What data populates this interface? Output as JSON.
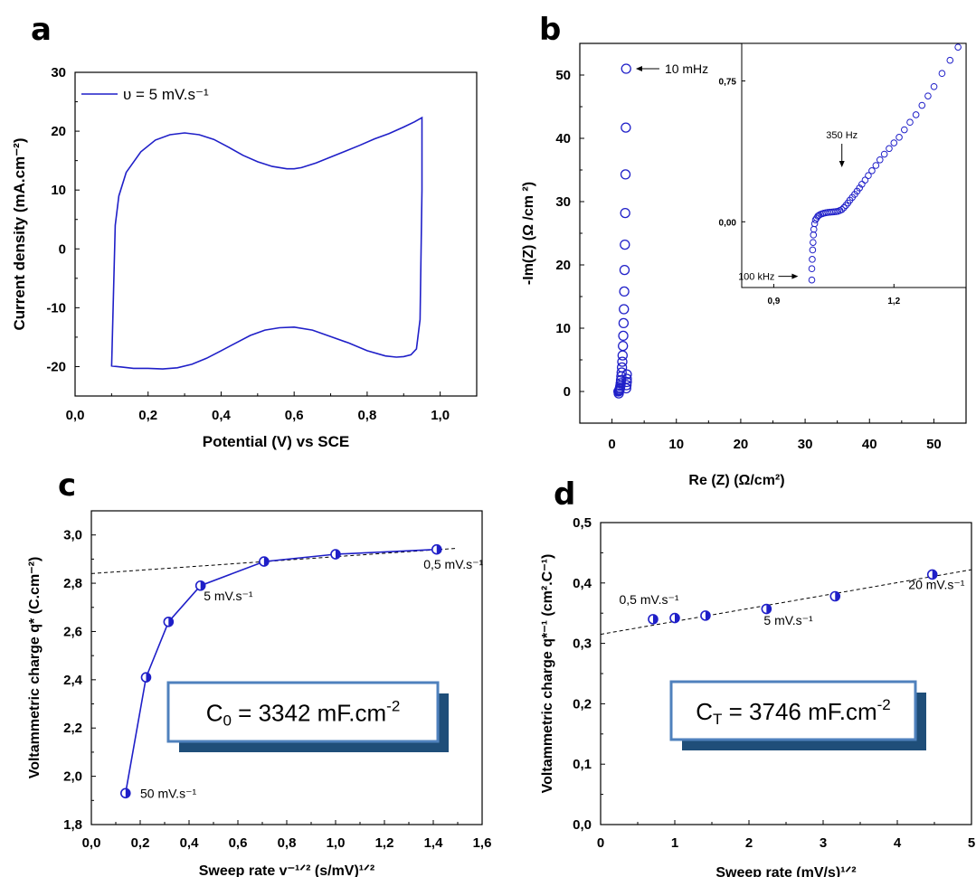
{
  "panels": {
    "a": {
      "letter": "a"
    },
    "b": {
      "letter": "b"
    },
    "c": {
      "letter": "c"
    },
    "d": {
      "letter": "d"
    }
  },
  "chart_data": [
    {
      "id": "a",
      "type": "line",
      "xlabel": "Potential (V) vs SCE",
      "ylabel": "Current density (mA.cm⁻²)",
      "xlim": [
        0.0,
        1.1
      ],
      "ylim": [
        -25,
        30
      ],
      "xticks": [
        "0,0",
        "0,2",
        "0,4",
        "0,6",
        "0,8",
        "1,0"
      ],
      "yticks": [
        "-20",
        "-10",
        "0",
        "10",
        "20",
        "30"
      ],
      "legend": {
        "label": "υ = 5 mV.s⁻¹",
        "position": "top-left"
      },
      "color": "#1f1fc8",
      "series": [
        {
          "name": "υ = 5 mV.s⁻¹",
          "x": [
            0.1,
            0.11,
            0.12,
            0.14,
            0.18,
            0.22,
            0.26,
            0.3,
            0.34,
            0.38,
            0.42,
            0.46,
            0.5,
            0.54,
            0.58,
            0.6,
            0.62,
            0.66,
            0.7,
            0.74,
            0.78,
            0.82,
            0.86,
            0.9,
            0.93,
            0.95,
            0.95,
            0.945,
            0.935,
            0.92,
            0.9,
            0.88,
            0.85,
            0.8,
            0.75,
            0.7,
            0.65,
            0.6,
            0.56,
            0.52,
            0.48,
            0.44,
            0.4,
            0.36,
            0.32,
            0.28,
            0.24,
            0.2,
            0.16,
            0.13,
            0.1,
            0.1
          ],
          "y": [
            -20,
            4.0,
            9.0,
            13.0,
            16.5,
            18.5,
            19.4,
            19.7,
            19.4,
            18.6,
            17.3,
            15.9,
            14.8,
            14.0,
            13.6,
            13.6,
            13.8,
            14.6,
            15.6,
            16.6,
            17.6,
            18.7,
            19.6,
            20.7,
            21.6,
            22.3,
            10.0,
            -12.0,
            -17.0,
            -18.0,
            -18.3,
            -18.4,
            -18.2,
            -17.3,
            -16.0,
            -14.9,
            -13.8,
            -13.3,
            -13.4,
            -13.8,
            -14.7,
            -16.0,
            -17.3,
            -18.6,
            -19.6,
            -20.2,
            -20.4,
            -20.3,
            -20.3,
            -20.1,
            -19.9,
            -20.0
          ]
        }
      ]
    },
    {
      "id": "b",
      "type": "scatter",
      "xlabel": "Re (Z) (Ω/cm²)",
      "ylabel": "-Im(Z) (Ω /cm ²)",
      "xlim": [
        -5,
        55
      ],
      "ylim": [
        -5,
        55
      ],
      "xticks": [
        "0",
        "10",
        "20",
        "30",
        "40",
        "50"
      ],
      "yticks": [
        "0",
        "10",
        "20",
        "30",
        "40",
        "50"
      ],
      "color": "#1f1fc8",
      "annotations": [
        {
          "text": "10 mHz",
          "x": 2.3,
          "y": 51
        }
      ],
      "series": [
        {
          "name": "",
          "x": [
            1.0,
            1.05,
            1.1,
            1.15,
            1.2,
            1.25,
            1.3,
            1.35,
            1.4,
            1.45,
            1.5,
            1.55,
            1.6,
            1.65,
            1.7,
            1.75,
            1.8,
            1.85,
            1.9,
            1.95,
            2.0,
            2.05,
            2.1,
            2.15,
            2.2,
            2.2,
            2.25,
            2.3,
            2.3,
            2.3
          ],
          "y": [
            0.0,
            -0.3,
            0.1,
            0.2,
            0.4,
            0.6,
            0.9,
            1.3,
            1.8,
            2.4,
            3.0,
            3.8,
            4.7,
            5.7,
            7.2,
            8.8,
            10.8,
            13.0,
            15.8,
            19.2,
            23.2,
            28.2,
            34.3,
            41.7,
            51.0,
            0.5,
            1.0,
            1.5,
            2.0,
            2.7
          ]
        }
      ],
      "inset": {
        "xlim": [
          0.82,
          1.38
        ],
        "ylim": [
          -0.35,
          0.95
        ],
        "xticks": [
          "0,9",
          "1,2"
        ],
        "yticks": [
          "0,00",
          "0,75"
        ],
        "annotations": [
          {
            "text": "350 Hz",
            "x": 1.07,
            "y": 0.3
          },
          {
            "text": "100 kHz",
            "x": 0.97,
            "y": -0.3
          }
        ],
        "series": [
          {
            "x": [
              0.995,
              0.995,
              0.996,
              0.997,
              0.998,
              0.999,
              1.0,
              1.002,
              1.004,
              1.007,
              1.01,
              1.013,
              1.017,
              1.021,
              1.025,
              1.03,
              1.035,
              1.04,
              1.045,
              1.05,
              1.055,
              1.06,
              1.065,
              1.07,
              1.075,
              1.08,
              1.085,
              1.09,
              1.096,
              1.102,
              1.108,
              1.114,
              1.12,
              1.128,
              1.136,
              1.145,
              1.155,
              1.165,
              1.176,
              1.188,
              1.2,
              1.213,
              1.226,
              1.24,
              1.255,
              1.27,
              1.285,
              1.3,
              1.32,
              1.34,
              1.36
            ],
            "y": [
              -0.31,
              -0.25,
              -0.2,
              -0.15,
              -0.11,
              -0.07,
              -0.04,
              -0.01,
              0.01,
              0.02,
              0.03,
              0.035,
              0.04,
              0.043,
              0.046,
              0.048,
              0.05,
              0.051,
              0.052,
              0.053,
              0.054,
              0.056,
              0.06,
              0.065,
              0.075,
              0.087,
              0.1,
              0.115,
              0.13,
              0.146,
              0.163,
              0.18,
              0.2,
              0.222,
              0.246,
              0.272,
              0.3,
              0.33,
              0.36,
              0.39,
              0.42,
              0.45,
              0.49,
              0.53,
              0.57,
              0.62,
              0.67,
              0.72,
              0.79,
              0.86,
              0.93
            ]
          }
        ]
      }
    },
    {
      "id": "c",
      "type": "line",
      "xlabel": "Sweep rate v⁻¹ᐟ² (s/mV)¹ᐟ²",
      "ylabel": "Voltammetric charge q* (C.cm⁻²)",
      "xlim": [
        0.0,
        1.6
      ],
      "ylim": [
        1.8,
        3.1
      ],
      "xticks": [
        "0,0",
        "0,2",
        "0,4",
        "0,6",
        "0,8",
        "1,0",
        "1,2",
        "1,4",
        "1,6"
      ],
      "yticks": [
        "1,8",
        "2,0",
        "2,2",
        "2,4",
        "2,6",
        "2,8",
        "3,0"
      ],
      "color": "#1f1fc8",
      "series": [
        {
          "name": "",
          "x": [
            0.14,
            0.224,
            0.316,
            0.447,
            0.707,
            1.0,
            1.414
          ],
          "y": [
            1.93,
            2.41,
            2.64,
            2.79,
            2.89,
            2.92,
            2.94
          ]
        }
      ],
      "fit_line": {
        "x": [
          0.0,
          1.5
        ],
        "y": [
          2.84,
          2.945
        ]
      },
      "annotations": [
        {
          "text": "0,5 mV.s⁻¹",
          "x": 1.36,
          "y": 2.86
        },
        {
          "text": "5 mV.s⁻¹",
          "x": 0.46,
          "y": 2.73
        },
        {
          "text": "50 mV.s⁻¹",
          "x": 0.2,
          "y": 1.91
        }
      ],
      "box": {
        "main": "C",
        "sub": "0",
        "rest": " = 3342 mF.cm",
        "sup": "-2"
      }
    },
    {
      "id": "d",
      "type": "scatter",
      "xlabel": "Sweep rate (mV/s)¹ᐟ²",
      "ylabel": "Voltammetric charge q*⁻¹ (cm².C⁻¹)",
      "xlim": [
        0,
        5
      ],
      "ylim": [
        0.0,
        0.5
      ],
      "xticks": [
        "0",
        "1",
        "2",
        "3",
        "4",
        "5"
      ],
      "yticks": [
        "0,0",
        "0,1",
        "0,2",
        "0,3",
        "0,4",
        "0,5"
      ],
      "color": "#1f1fc8",
      "series": [
        {
          "name": "",
          "x": [
            0.707,
            1.0,
            1.414,
            2.236,
            3.162,
            4.472
          ],
          "y": [
            0.34,
            0.342,
            0.346,
            0.357,
            0.378,
            0.414
          ]
        }
      ],
      "fit_line": {
        "x": [
          0.0,
          5.0
        ],
        "y": [
          0.315,
          0.422
        ]
      },
      "annotations": [
        {
          "text": "0,5 mV.s⁻¹",
          "x": 0.25,
          "y": 0.365
        },
        {
          "text": "5 mV.s⁻¹",
          "x": 2.2,
          "y": 0.331
        },
        {
          "text": "20 mV.s⁻¹",
          "x": 4.15,
          "y": 0.39
        }
      ],
      "box": {
        "main": "C",
        "sub": "T",
        "rest": " = 3746 mF.cm",
        "sup": "-2"
      }
    }
  ]
}
